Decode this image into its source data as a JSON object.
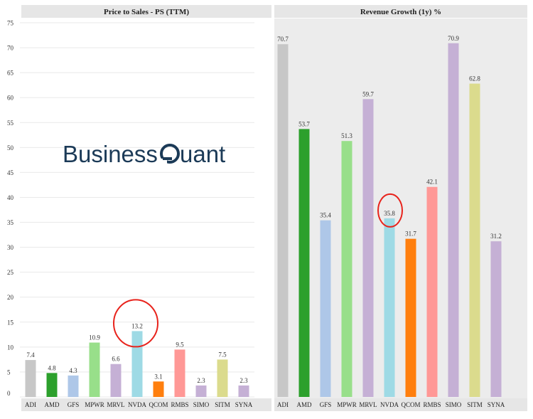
{
  "brand": {
    "text_before": "Business ",
    "text_after": "uant",
    "color": "#1b3a57"
  },
  "annotation_color": "#e8231c",
  "chart_data": [
    {
      "type": "bar",
      "title": "Price to Sales - PS (TTM)",
      "categories": [
        "ADI",
        "AMD",
        "GFS",
        "MPWR",
        "MRVL",
        "NVDA",
        "QCOM",
        "RMBS",
        "SIMO",
        "SITM",
        "SYNA"
      ],
      "values": [
        7.4,
        4.8,
        4.3,
        10.9,
        6.6,
        13.2,
        3.1,
        9.5,
        2.3,
        7.5,
        2.3
      ],
      "value_labels": [
        "7.4",
        "4.8",
        "4.3",
        "10.9",
        "6.6",
        "13.2",
        "3.1",
        "9.5",
        "2.3",
        "7.5",
        "2.3"
      ],
      "colors": [
        "#c7c7c7",
        "#2ca02c",
        "#aec7e8",
        "#98df8a",
        "#c5b0d5",
        "#9edae5",
        "#ff7f0e",
        "#ff9896",
        "#c5b0d5",
        "#dbdb8d",
        "#c5b0d5"
      ],
      "ylim": [
        0,
        75
      ],
      "yticks": [
        "0",
        "5",
        "10",
        "15",
        "20",
        "25",
        "30",
        "35",
        "40",
        "45",
        "50",
        "55",
        "60",
        "65",
        "70",
        "75"
      ],
      "grid": true,
      "highlight": "NVDA"
    },
    {
      "type": "bar",
      "title": "Revenue Growth (1y) %",
      "categories": [
        "ADI",
        "AMD",
        "GFS",
        "MPWR",
        "MRVL",
        "NVDA",
        "QCOM",
        "RMBS",
        "SIMO",
        "SITM",
        "SYNA"
      ],
      "values": [
        70.7,
        53.7,
        35.4,
        51.3,
        59.7,
        35.8,
        31.7,
        42.1,
        70.9,
        62.8,
        31.2
      ],
      "value_labels": [
        "70.7",
        "53.7",
        "35.4",
        "51.3",
        "59.7",
        "35.8",
        "31.7",
        "42.1",
        "70.9",
        "62.8",
        "31.2"
      ],
      "colors": [
        "#c7c7c7",
        "#2ca02c",
        "#aec7e8",
        "#98df8a",
        "#c5b0d5",
        "#9edae5",
        "#ff7f0e",
        "#ff9896",
        "#c5b0d5",
        "#dbdb8d",
        "#c5b0d5"
      ],
      "ylim": [
        0,
        75
      ],
      "grid": false,
      "highlight": "NVDA"
    }
  ]
}
